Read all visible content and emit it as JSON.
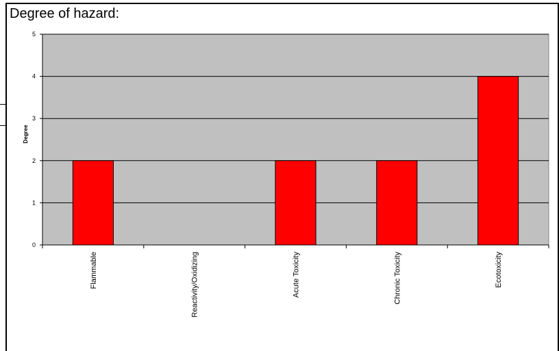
{
  "title": "Degree of hazard:",
  "chart_data": {
    "type": "bar",
    "categories": [
      "Flammable",
      "Reactivity/Oxidizing",
      "Acute Toxicity",
      "Chronic Toxicity",
      "Ecotoxicity"
    ],
    "values": [
      2,
      0,
      2,
      2,
      4
    ],
    "ylabel": "Degree",
    "xlabel": "",
    "ylim": [
      0,
      5
    ],
    "yticks": [
      0,
      1,
      2,
      3,
      4,
      5
    ],
    "grid": true,
    "legend": "none",
    "colors": {
      "bar": "#ff0000",
      "bar_border": "#000000",
      "plot_background": "#c0c0c0",
      "gridline": "#000000"
    }
  }
}
